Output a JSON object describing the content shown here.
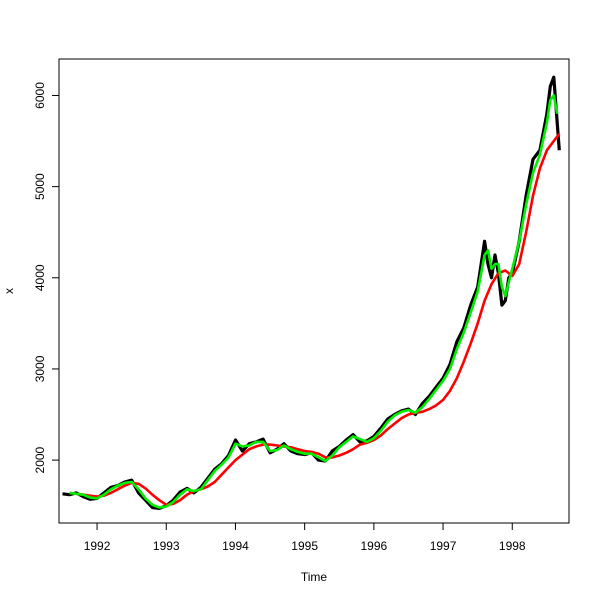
{
  "chart_data": {
    "type": "line",
    "title": "",
    "xlabel": "Time",
    "ylabel": "x",
    "xlim": [
      1991.45,
      1998.82
    ],
    "ylim": [
      1310,
      6400
    ],
    "x_ticks": [
      1992,
      1993,
      1994,
      1995,
      1996,
      1997,
      1998
    ],
    "x_tick_labels": [
      "1992",
      "1993",
      "1994",
      "1995",
      "1996",
      "1997",
      "1998"
    ],
    "y_ticks": [
      2000,
      3000,
      4000,
      5000,
      6000
    ],
    "y_tick_labels": [
      "2000",
      "3000",
      "4000",
      "5000",
      "6000"
    ],
    "grid": false,
    "series": [
      {
        "color": "#000000",
        "x": [
          1991.5,
          1991.6,
          1991.7,
          1991.8,
          1991.9,
          1992.0,
          1992.1,
          1992.2,
          1992.3,
          1992.4,
          1992.5,
          1992.6,
          1992.7,
          1992.8,
          1992.9,
          1993.0,
          1993.1,
          1993.2,
          1993.3,
          1993.4,
          1993.5,
          1993.6,
          1993.7,
          1993.8,
          1993.9,
          1994.0,
          1994.1,
          1994.2,
          1994.3,
          1994.4,
          1994.5,
          1994.6,
          1994.7,
          1994.8,
          1994.9,
          1995.0,
          1995.1,
          1995.2,
          1995.3,
          1995.4,
          1995.5,
          1995.6,
          1995.7,
          1995.8,
          1995.9,
          1996.0,
          1996.1,
          1996.2,
          1996.3,
          1996.4,
          1996.5,
          1996.6,
          1996.7,
          1996.8,
          1996.9,
          1997.0,
          1997.1,
          1997.2,
          1997.3,
          1997.4,
          1997.5,
          1997.6,
          1997.65,
          1997.7,
          1997.75,
          1997.8,
          1997.85,
          1997.9,
          1997.95,
          1998.0,
          1998.1,
          1998.2,
          1998.3,
          1998.4,
          1998.5,
          1998.55,
          1998.6,
          1998.65,
          1998.68
        ],
        "y": [
          1630,
          1620,
          1640,
          1600,
          1570,
          1580,
          1640,
          1700,
          1720,
          1760,
          1780,
          1640,
          1560,
          1480,
          1470,
          1500,
          1560,
          1650,
          1690,
          1640,
          1700,
          1800,
          1900,
          1960,
          2050,
          2220,
          2100,
          2180,
          2200,
          2230,
          2080,
          2120,
          2180,
          2100,
          2070,
          2060,
          2080,
          2000,
          1990,
          2100,
          2150,
          2220,
          2280,
          2200,
          2210,
          2260,
          2350,
          2450,
          2500,
          2540,
          2560,
          2500,
          2620,
          2700,
          2800,
          2900,
          3050,
          3300,
          3450,
          3700,
          3900,
          4400,
          4150,
          4000,
          4250,
          4050,
          3700,
          3750,
          4000,
          4050,
          4400,
          4900,
          5300,
          5400,
          5800,
          6100,
          6200,
          5700,
          5400
        ]
      },
      {
        "color": "#ff0000",
        "x": [
          1991.6,
          1991.7,
          1991.8,
          1991.9,
          1992.0,
          1992.1,
          1992.2,
          1992.3,
          1992.4,
          1992.5,
          1992.6,
          1992.7,
          1992.8,
          1992.9,
          1993.0,
          1993.1,
          1993.2,
          1993.3,
          1993.4,
          1993.5,
          1993.6,
          1993.7,
          1993.8,
          1993.9,
          1994.0,
          1994.1,
          1994.2,
          1994.3,
          1994.4,
          1994.5,
          1994.6,
          1994.7,
          1994.8,
          1994.9,
          1995.0,
          1995.1,
          1995.2,
          1995.3,
          1995.4,
          1995.5,
          1995.6,
          1995.7,
          1995.8,
          1995.9,
          1996.0,
          1996.1,
          1996.2,
          1996.3,
          1996.4,
          1996.5,
          1996.6,
          1996.7,
          1996.8,
          1996.9,
          1997.0,
          1997.1,
          1997.2,
          1997.3,
          1997.4,
          1997.5,
          1997.6,
          1997.7,
          1997.8,
          1997.9,
          1998.0,
          1998.1,
          1998.2,
          1998.3,
          1998.4,
          1998.5,
          1998.6,
          1998.68
        ],
        "y": [
          1640,
          1630,
          1620,
          1610,
          1600,
          1610,
          1640,
          1680,
          1720,
          1750,
          1740,
          1690,
          1620,
          1560,
          1510,
          1520,
          1560,
          1620,
          1660,
          1680,
          1710,
          1760,
          1840,
          1920,
          2000,
          2060,
          2120,
          2150,
          2170,
          2170,
          2160,
          2150,
          2140,
          2120,
          2100,
          2090,
          2070,
          2030,
          2030,
          2050,
          2080,
          2120,
          2170,
          2190,
          2220,
          2270,
          2340,
          2400,
          2460,
          2500,
          2520,
          2530,
          2560,
          2600,
          2660,
          2760,
          2900,
          3080,
          3280,
          3500,
          3750,
          3930,
          4050,
          4080,
          4020,
          4150,
          4500,
          4900,
          5200,
          5400,
          5500,
          5580
        ]
      },
      {
        "color": "#00ee00",
        "x": [
          1991.6,
          1991.7,
          1991.8,
          1991.9,
          1992.0,
          1992.1,
          1992.2,
          1992.3,
          1992.4,
          1992.5,
          1992.6,
          1992.7,
          1992.8,
          1992.9,
          1993.0,
          1993.1,
          1993.2,
          1993.3,
          1993.4,
          1993.5,
          1993.6,
          1993.7,
          1993.8,
          1993.9,
          1994.0,
          1994.1,
          1994.2,
          1994.3,
          1994.4,
          1994.5,
          1994.6,
          1994.7,
          1994.8,
          1994.9,
          1995.0,
          1995.1,
          1995.2,
          1995.3,
          1995.4,
          1995.5,
          1995.6,
          1995.7,
          1995.8,
          1995.9,
          1996.0,
          1996.1,
          1996.2,
          1996.3,
          1996.4,
          1996.5,
          1996.6,
          1996.7,
          1996.8,
          1996.9,
          1997.0,
          1997.1,
          1997.2,
          1997.3,
          1997.4,
          1997.5,
          1997.6,
          1997.65,
          1997.7,
          1997.75,
          1997.8,
          1997.85,
          1997.9,
          1997.95,
          1998.0,
          1998.1,
          1998.2,
          1998.3,
          1998.4,
          1998.5,
          1998.55,
          1998.6,
          1998.65
        ],
        "y": [
          1640,
          1630,
          1620,
          1590,
          1580,
          1620,
          1680,
          1720,
          1750,
          1760,
          1680,
          1580,
          1510,
          1480,
          1490,
          1540,
          1620,
          1680,
          1660,
          1680,
          1780,
          1880,
          1950,
          2030,
          2180,
          2150,
          2160,
          2200,
          2200,
          2100,
          2110,
          2160,
          2120,
          2090,
          2070,
          2070,
          2030,
          1990,
          2050,
          2140,
          2200,
          2260,
          2230,
          2200,
          2240,
          2320,
          2420,
          2490,
          2530,
          2550,
          2520,
          2580,
          2670,
          2770,
          2870,
          3000,
          3220,
          3400,
          3620,
          3850,
          4250,
          4300,
          4100,
          4150,
          4150,
          3900,
          3800,
          3950,
          4100,
          4400,
          4800,
          5150,
          5350,
          5700,
          5950,
          6000,
          5800
        ]
      }
    ]
  }
}
